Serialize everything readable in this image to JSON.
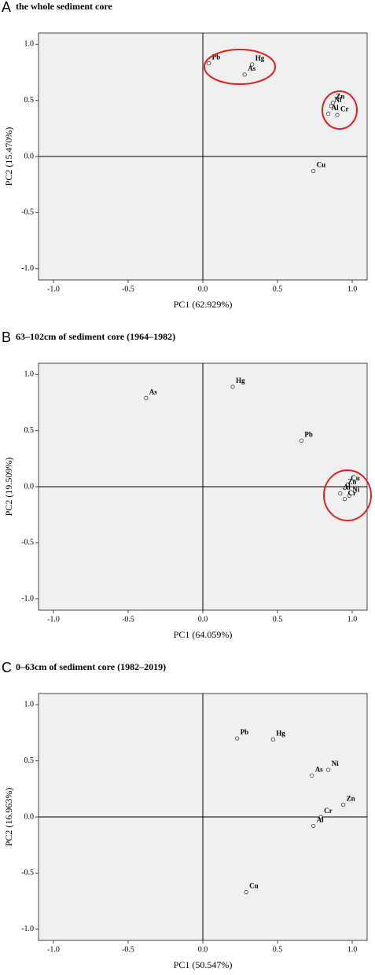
{
  "chart_data": [
    {
      "type": "scatter",
      "label": "A",
      "title": "the whole sediment core",
      "x_label": "PC1 (62.929%)",
      "y_label": "PC2 (15.470%)",
      "point_labels": [
        "Pb",
        "Hg",
        "As",
        "Zn",
        "Ni",
        "Cr",
        "Al",
        "Cu"
      ],
      "x": [
        0.04,
        0.33,
        0.28,
        0.87,
        0.86,
        0.9,
        0.84,
        0.74
      ],
      "values": [
        0.83,
        0.82,
        0.73,
        0.48,
        0.45,
        0.37,
        0.38,
        -0.13
      ],
      "xlim": [
        -1.1,
        1.1
      ],
      "ylim": [
        -1.1,
        1.1
      ],
      "xticks": [
        {
          "value": -1,
          "label": "-1.0"
        },
        {
          "value": -0.5,
          "label": "-0.5"
        },
        {
          "value": 0,
          "label": "0.0"
        },
        {
          "value": 0.5,
          "label": "0.5"
        },
        {
          "value": 1,
          "label": "1.0"
        }
      ],
      "yticks": [
        {
          "value": -1,
          "label": "-1.0"
        },
        {
          "value": -0.5,
          "label": "-0.5"
        },
        {
          "value": 0,
          "label": "0.0"
        },
        {
          "value": 0.5,
          "label": "0.5"
        },
        {
          "value": 1,
          "label": "1.0"
        }
      ]
    },
    {
      "type": "scatter",
      "label": "B",
      "title": "63–102cm of sediment core (1964–1982)",
      "x_label": "PC1 (64.059%)",
      "y_label": "PC2 (19.509%)",
      "point_labels": [
        "As",
        "Hg",
        "Pb",
        "Cu",
        "Zn",
        "Al",
        "Ni",
        "Cr"
      ],
      "x": [
        -0.38,
        0.2,
        0.66,
        0.97,
        0.95,
        0.92,
        0.98,
        0.95
      ],
      "values": [
        0.79,
        0.89,
        0.41,
        0.02,
        -0.01,
        -0.06,
        -0.08,
        -0.11
      ],
      "xlim": [
        -1.1,
        1.1
      ],
      "ylim": [
        -1.1,
        1.1
      ],
      "xticks": [
        {
          "value": -1,
          "label": "-1.0"
        },
        {
          "value": -0.5,
          "label": "-0.5"
        },
        {
          "value": 0,
          "label": "0.0"
        },
        {
          "value": 0.5,
          "label": "0.5"
        },
        {
          "value": 1,
          "label": "1.0"
        }
      ],
      "yticks": [
        {
          "value": -1,
          "label": "-1.0"
        },
        {
          "value": -0.5,
          "label": "-0.5"
        },
        {
          "value": 0,
          "label": "0.0"
        },
        {
          "value": 0.5,
          "label": "0.5"
        },
        {
          "value": 1,
          "label": "1.0"
        }
      ]
    },
    {
      "type": "scatter",
      "label": "C",
      "title": "0–63cm of sediment core (1982–2019)",
      "x_label": "PC1 (50.547%)",
      "y_label": "PC2 (16.963%)",
      "point_labels": [
        "Pb",
        "Hg",
        "As",
        "Ni",
        "Zn",
        "Cr",
        "Al",
        "Cu"
      ],
      "x": [
        0.23,
        0.47,
        0.73,
        0.84,
        0.94,
        0.79,
        0.74,
        0.29
      ],
      "values": [
        0.7,
        0.69,
        0.37,
        0.42,
        0.11,
        0.0,
        -0.08,
        -0.67
      ],
      "xlim": [
        -1.1,
        1.1
      ],
      "ylim": [
        -1.1,
        1.1
      ],
      "xticks": [
        {
          "value": -1,
          "label": "-1.0"
        },
        {
          "value": -0.5,
          "label": "-0.5"
        },
        {
          "value": 0,
          "label": "0.0"
        },
        {
          "value": 0.5,
          "label": "0.5"
        },
        {
          "value": 1,
          "label": "1.0"
        }
      ],
      "yticks": [
        {
          "value": -1,
          "label": "-1.0"
        },
        {
          "value": -0.5,
          "label": "-0.5"
        },
        {
          "value": 0,
          "label": "0.0"
        },
        {
          "value": 0.5,
          "label": "0.5"
        },
        {
          "value": 1,
          "label": "1.0"
        }
      ]
    }
  ]
}
